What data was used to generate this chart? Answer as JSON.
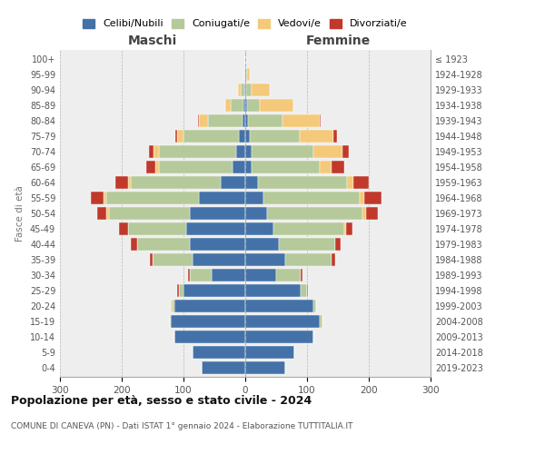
{
  "age_groups": [
    "0-4",
    "5-9",
    "10-14",
    "15-19",
    "20-24",
    "25-29",
    "30-34",
    "35-39",
    "40-44",
    "45-49",
    "50-54",
    "55-59",
    "60-64",
    "65-69",
    "70-74",
    "75-79",
    "80-84",
    "85-89",
    "90-94",
    "95-99",
    "100+"
  ],
  "birth_years": [
    "2019-2023",
    "2014-2018",
    "2009-2013",
    "2004-2008",
    "1999-2003",
    "1994-1998",
    "1989-1993",
    "1984-1988",
    "1979-1983",
    "1974-1978",
    "1969-1973",
    "1964-1968",
    "1959-1963",
    "1954-1958",
    "1949-1953",
    "1944-1948",
    "1939-1943",
    "1934-1938",
    "1929-1933",
    "1924-1928",
    "≤ 1923"
  ],
  "male": {
    "celibi": [
      70,
      85,
      115,
      120,
      115,
      100,
      55,
      85,
      90,
      95,
      90,
      75,
      40,
      20,
      15,
      10,
      5,
      3,
      2,
      0,
      0
    ],
    "coniugati": [
      0,
      0,
      0,
      2,
      3,
      8,
      35,
      65,
      85,
      95,
      130,
      150,
      145,
      120,
      125,
      90,
      55,
      20,
      5,
      1,
      0
    ],
    "vedovi": [
      0,
      0,
      0,
      0,
      2,
      0,
      0,
      0,
      0,
      0,
      5,
      5,
      5,
      5,
      8,
      10,
      15,
      10,
      5,
      1,
      0
    ],
    "divorziati": [
      0,
      0,
      0,
      0,
      0,
      2,
      3,
      5,
      10,
      15,
      15,
      20,
      20,
      15,
      8,
      3,
      2,
      0,
      0,
      0,
      0
    ]
  },
  "female": {
    "nubili": [
      65,
      80,
      110,
      120,
      110,
      90,
      50,
      65,
      55,
      45,
      35,
      30,
      20,
      10,
      10,
      8,
      5,
      3,
      2,
      1,
      0
    ],
    "coniugate": [
      0,
      0,
      0,
      5,
      5,
      10,
      40,
      75,
      90,
      115,
      155,
      155,
      145,
      110,
      100,
      80,
      55,
      20,
      8,
      2,
      0
    ],
    "vedove": [
      0,
      0,
      0,
      0,
      0,
      0,
      0,
      0,
      0,
      3,
      5,
      8,
      10,
      20,
      48,
      55,
      60,
      55,
      30,
      5,
      1
    ],
    "divorziate": [
      0,
      0,
      0,
      0,
      0,
      2,
      3,
      5,
      10,
      10,
      20,
      28,
      25,
      20,
      10,
      5,
      2,
      0,
      0,
      0,
      0
    ]
  },
  "colors": {
    "celibi": "#4472a8",
    "coniugati": "#b5c99a",
    "vedovi": "#f5c97a",
    "divorziati": "#c0392b"
  },
  "title": "Popolazione per età, sesso e stato civile - 2024",
  "subtitle": "COMUNE DI CANEVA (PN) - Dati ISTAT 1° gennaio 2024 - Elaborazione TUTTITALIA.IT",
  "xlabel_maschi": "Maschi",
  "xlabel_femmine": "Femmine",
  "ylabel": "Fasce di età",
  "xlim": 300,
  "background_color": "#ffffff",
  "legend_labels": [
    "Celibi/Nubili",
    "Coniugati/e",
    "Vedovi/e",
    "Divorziati/e"
  ]
}
